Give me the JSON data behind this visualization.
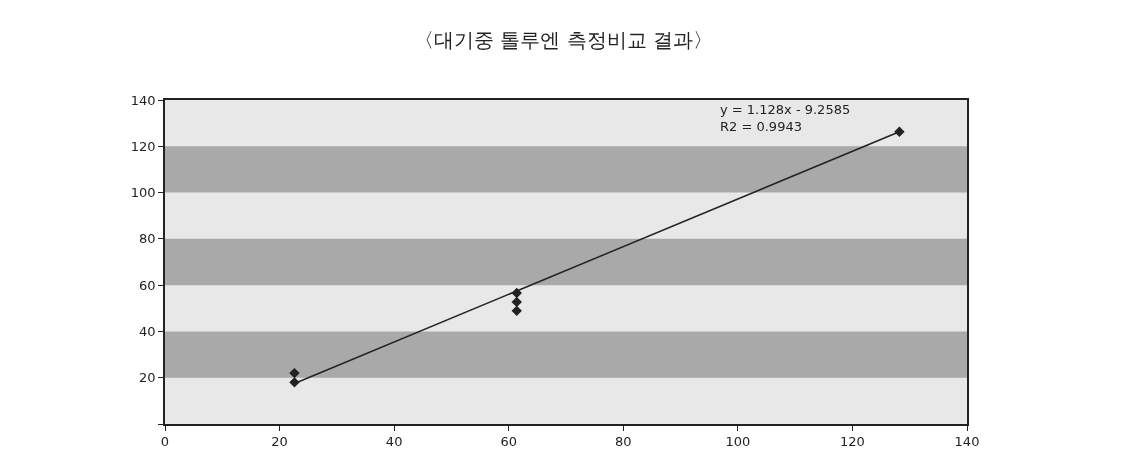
{
  "chart_data": {
    "type": "scatter",
    "title": "〈대기중 톨루엔 측정비교 결과〉",
    "series": [
      {
        "color": "#222222",
        "marker": "diamond",
        "x": [
          22.6,
          22.6,
          61.4,
          61.4,
          61.4,
          128.2
        ],
        "values": [
          22,
          18,
          56.6,
          52.7,
          48.9,
          126.3
        ]
      },
      {
        "type": "line",
        "color": "#222222",
        "marker": "none",
        "x": [
          22.6,
          128.2
        ],
        "values": [
          17.5,
          126.3
        ]
      }
    ],
    "xlim": [
      0,
      140
    ],
    "xticks": [
      0,
      20,
      40,
      60,
      80,
      100,
      120,
      140
    ],
    "ylim": [
      0,
      140
    ],
    "yticks": [
      {
        "value": 0,
        "label": null
      },
      20,
      40,
      60,
      80,
      100,
      120,
      140
    ],
    "bands": [
      {
        "axis": "y",
        "from": 20,
        "to": 40,
        "color": "#a9a9a9"
      },
      {
        "axis": "y",
        "from": 60,
        "to": 80,
        "color": "#a9a9a9"
      },
      {
        "axis": "y",
        "from": 100,
        "to": 120,
        "color": "#a9a9a9"
      }
    ],
    "annotations": [
      "y = 1.128x - 9.2585\nR2 = 0.9943"
    ],
    "grid": false
  }
}
